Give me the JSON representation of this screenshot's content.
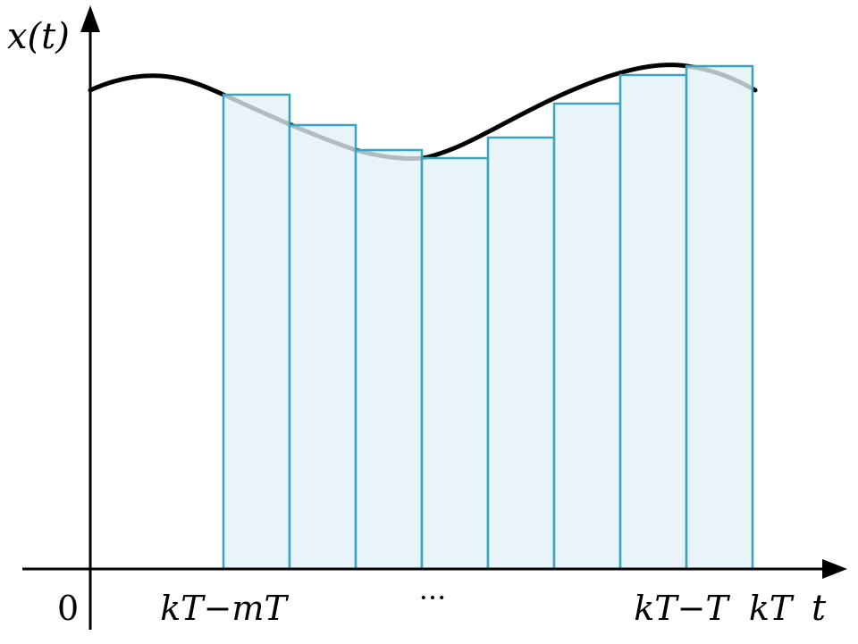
{
  "figure": {
    "y_axis_label": "x(t)",
    "x_axis_label": "t",
    "origin_label": "0",
    "tick_labels": {
      "start": "kT−mT",
      "middle": "···",
      "second_last": "kT−T",
      "last": "kT"
    }
  },
  "colors": {
    "axis": "#000000",
    "curve": "#000000",
    "bar_fill": "#e2f1f6",
    "bar_stroke": "#3aa3c0"
  }
}
